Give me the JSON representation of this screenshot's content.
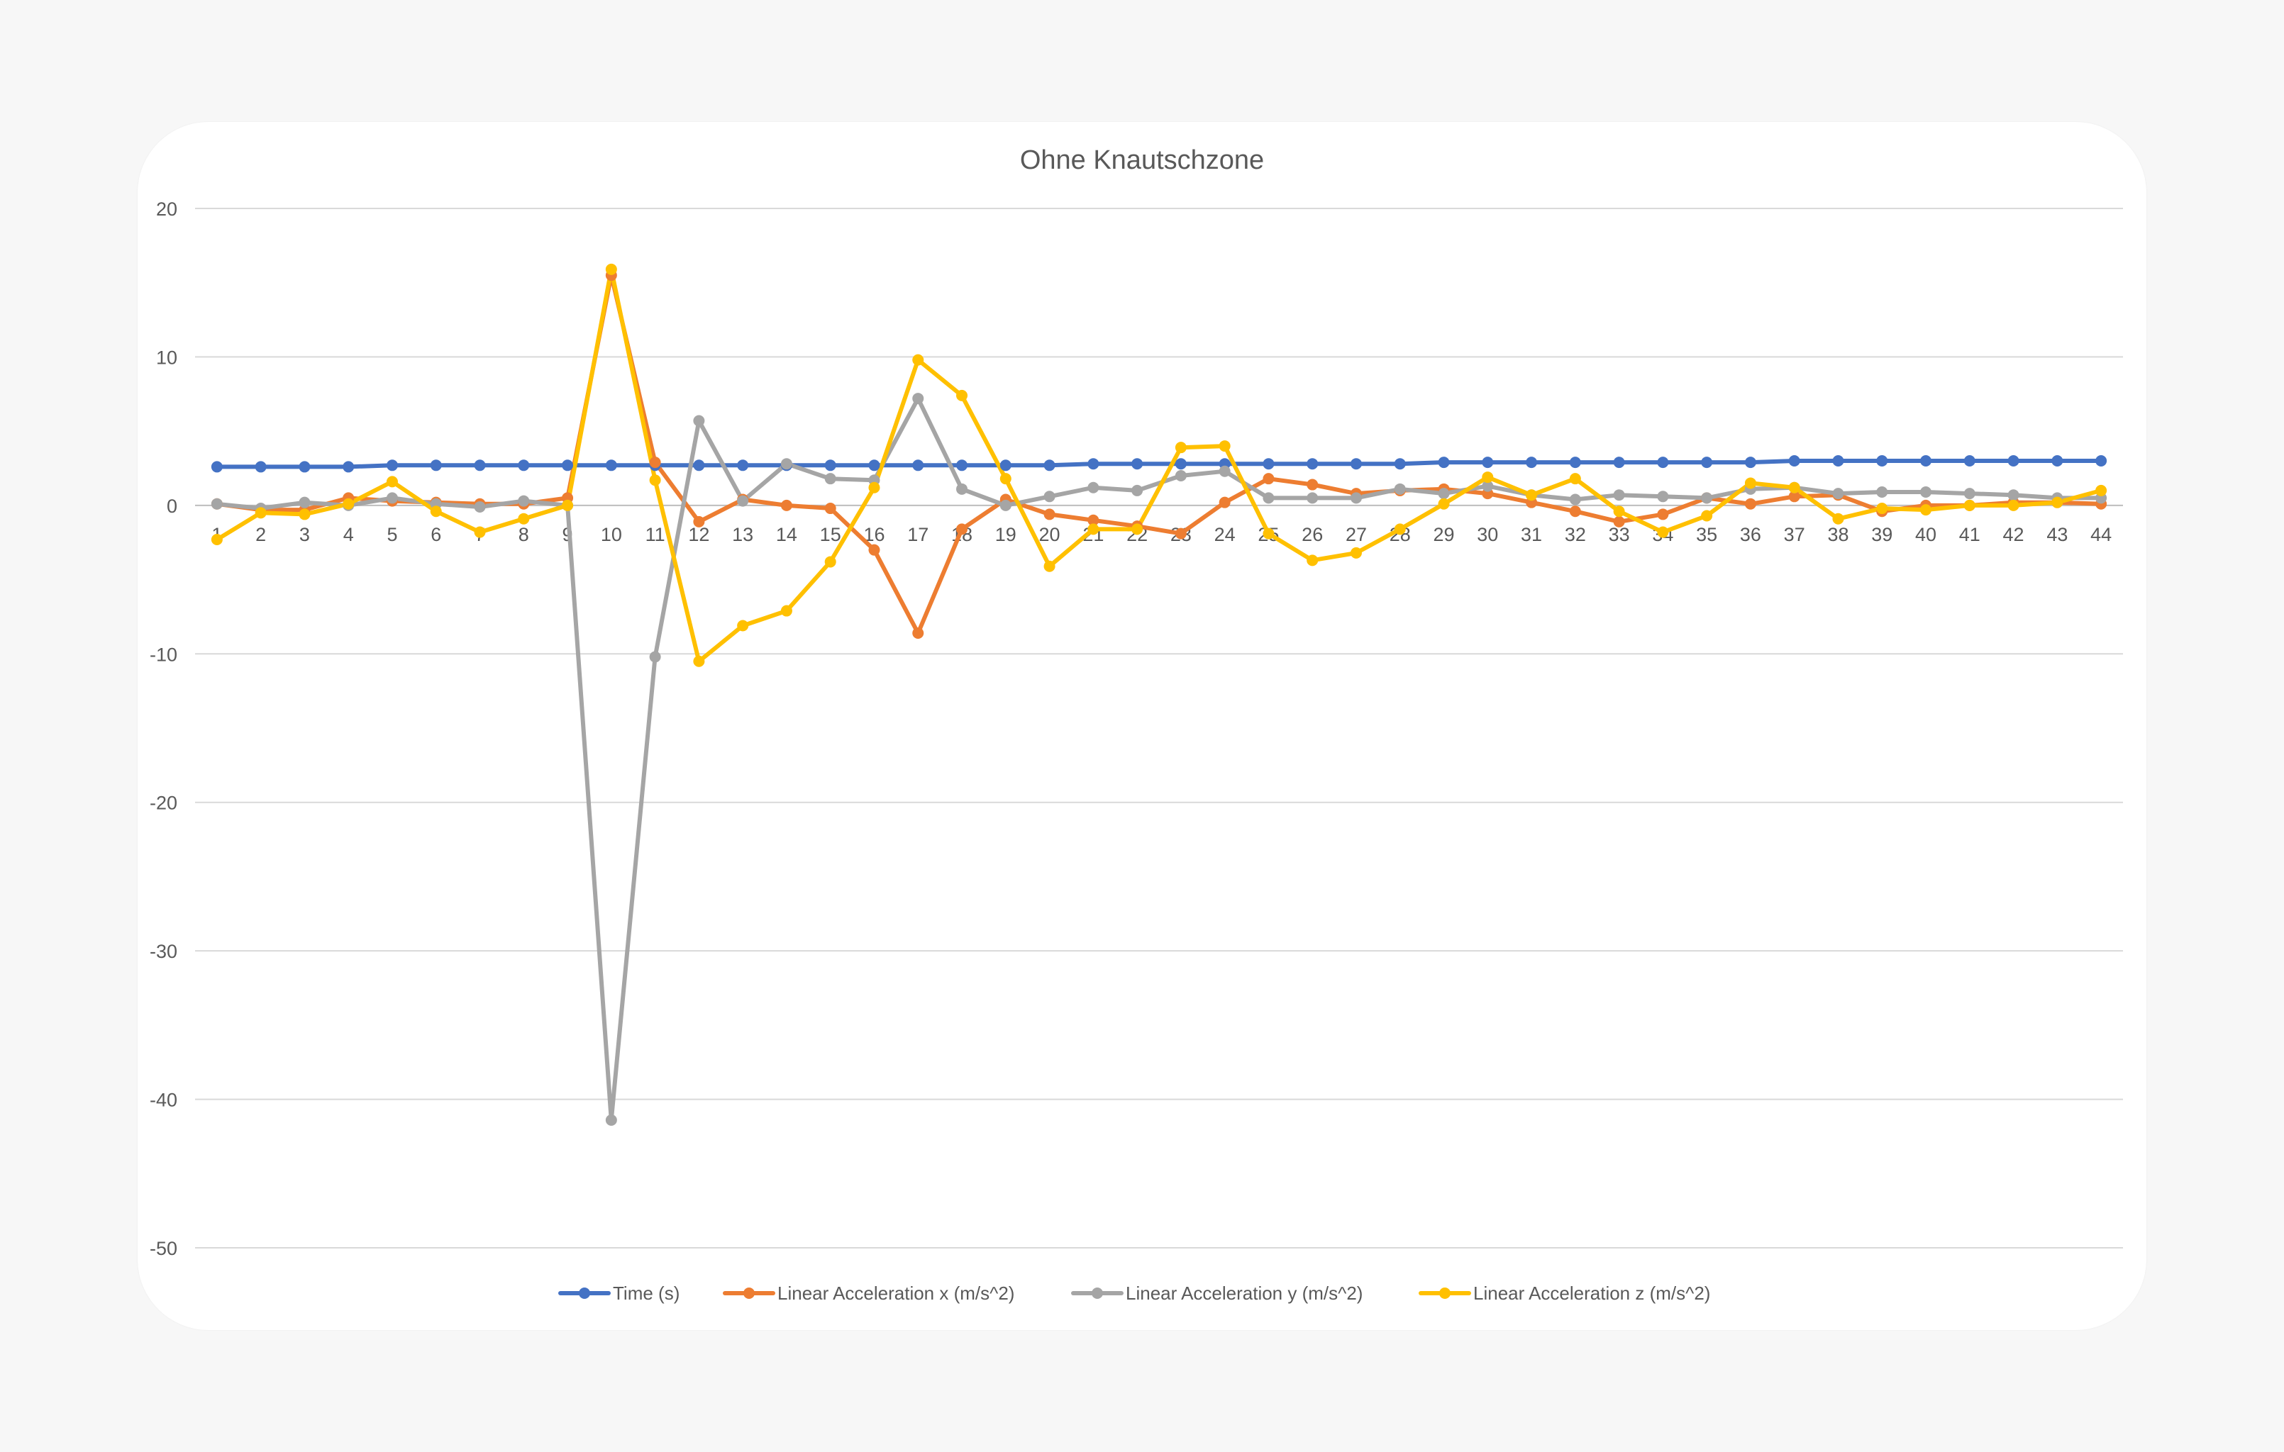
{
  "chart_data": {
    "type": "line",
    "title": "Ohne Knautschzone",
    "xlabel": "",
    "ylabel": "",
    "ylim": [
      -50,
      20
    ],
    "yticks": [
      20,
      10,
      0,
      -10,
      -20,
      -30,
      -40,
      -50
    ],
    "categories": [
      "1",
      "2",
      "3",
      "4",
      "5",
      "6",
      "7",
      "8",
      "9",
      "10",
      "11",
      "12",
      "13",
      "14",
      "15",
      "16",
      "17",
      "18",
      "19",
      "20",
      "21",
      "22",
      "23",
      "24",
      "25",
      "26",
      "27",
      "28",
      "29",
      "30",
      "31",
      "32",
      "33",
      "34",
      "35",
      "36",
      "37",
      "38",
      "39",
      "40",
      "41",
      "42",
      "43",
      "44"
    ],
    "grid": true,
    "legend_position": "bottom",
    "markers": true,
    "series": [
      {
        "name": "Time (s)",
        "color": "#4472c4",
        "values": [
          2.6,
          2.6,
          2.6,
          2.6,
          2.7,
          2.7,
          2.7,
          2.7,
          2.7,
          2.7,
          2.7,
          2.7,
          2.7,
          2.7,
          2.7,
          2.7,
          2.7,
          2.7,
          2.7,
          2.7,
          2.8,
          2.8,
          2.8,
          2.8,
          2.8,
          2.8,
          2.8,
          2.8,
          2.9,
          2.9,
          2.9,
          2.9,
          2.9,
          2.9,
          2.9,
          2.9,
          3.0,
          3.0,
          3.0,
          3.0,
          3.0,
          3.0,
          3.0,
          3.0
        ]
      },
      {
        "name": "Linear Acceleration x (m/s^2)",
        "color": "#ed7d31",
        "values": [
          0.1,
          -0.3,
          -0.3,
          0.5,
          0.3,
          0.2,
          0.1,
          0.1,
          0.5,
          15.5,
          2.9,
          -1.1,
          0.4,
          0.0,
          -0.2,
          -3.0,
          -8.6,
          -1.6,
          0.4,
          -0.6,
          -1.0,
          -1.4,
          -1.9,
          0.2,
          1.8,
          1.4,
          0.8,
          1.0,
          1.1,
          0.8,
          0.2,
          -0.4,
          -1.1,
          -0.6,
          0.5,
          0.1,
          0.6,
          0.7,
          -0.4,
          0.0,
          0.0,
          0.2,
          0.2,
          0.1
        ]
      },
      {
        "name": "Linear Acceleration y (m/s^2)",
        "color": "#a5a5a5",
        "values": [
          0.1,
          -0.2,
          0.2,
          0.0,
          0.5,
          0.1,
          -0.1,
          0.3,
          0.0,
          -41.4,
          -10.2,
          5.7,
          0.3,
          2.8,
          1.8,
          1.7,
          7.2,
          1.1,
          0.0,
          0.6,
          1.2,
          1.0,
          2.0,
          2.3,
          0.5,
          0.5,
          0.5,
          1.1,
          0.8,
          1.3,
          0.7,
          0.4,
          0.7,
          0.6,
          0.5,
          1.1,
          1.2,
          0.8,
          0.9,
          0.9,
          0.8,
          0.7,
          0.5,
          0.5
        ]
      },
      {
        "name": "Linear Acceleration z (m/s^2)",
        "color": "#ffc000",
        "values": [
          -2.3,
          -0.5,
          -0.6,
          0.1,
          1.6,
          -0.4,
          -1.8,
          -0.9,
          0.0,
          15.9,
          1.7,
          -10.5,
          -8.1,
          -7.1,
          -3.8,
          1.2,
          9.8,
          7.4,
          1.8,
          -4.1,
          -1.6,
          -1.6,
          3.9,
          4.0,
          -1.9,
          -3.7,
          -3.2,
          -1.6,
          0.1,
          1.9,
          0.7,
          1.8,
          -0.4,
          -1.8,
          -0.7,
          1.5,
          1.2,
          -0.9,
          -0.2,
          -0.3,
          0.0,
          0.0,
          0.2,
          1.0
        ]
      }
    ]
  }
}
